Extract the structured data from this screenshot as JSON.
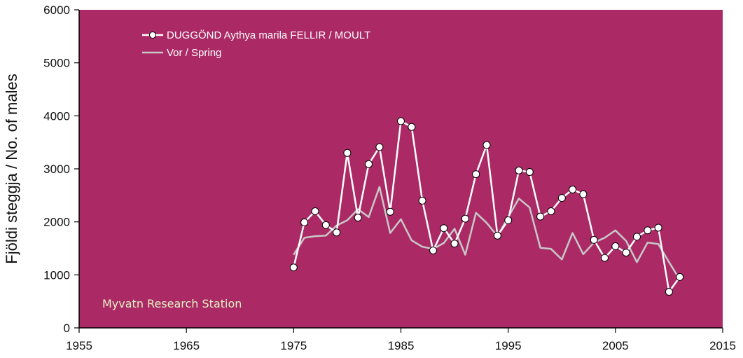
{
  "chart_data": {
    "type": "line",
    "title": "",
    "xlabel": "",
    "ylabel": "Fjöldi steggja / No. of males",
    "xlim": [
      1955,
      2015
    ],
    "ylim": [
      0,
      6000
    ],
    "xticks": [
      1955,
      1965,
      1975,
      1985,
      1995,
      2005,
      2015
    ],
    "yticks": [
      0,
      1000,
      2000,
      3000,
      4000,
      5000,
      6000
    ],
    "grid": false,
    "legend_position": "top-left",
    "annotation": "Myvatn Research Station",
    "colors": {
      "plot_background": "#ab2a66",
      "moult": "#ffffff",
      "spring": "#c8c8c8",
      "annotation": "#e4f3c4"
    },
    "series": [
      {
        "name": "DUGGÖND Aythya marila FELLIR / MOULT",
        "marker": "circle",
        "x": [
          1975,
          1976,
          1977,
          1978,
          1979,
          1980,
          1981,
          1982,
          1983,
          1984,
          1985,
          1986,
          1987,
          1988,
          1989,
          1990,
          1991,
          1992,
          1993,
          1994,
          1995,
          1996,
          1997,
          1998,
          1999,
          2000,
          2001,
          2002,
          2003,
          2004,
          2005,
          2006,
          2007,
          2008,
          2009,
          2010,
          2011
        ],
        "y": [
          1140,
          1990,
          2200,
          1940,
          1800,
          3300,
          2080,
          3090,
          3410,
          2190,
          3900,
          3790,
          2400,
          1460,
          1880,
          1590,
          2060,
          2900,
          3450,
          1740,
          2030,
          2970,
          2940,
          2100,
          2200,
          2450,
          2610,
          2520,
          1660,
          1320,
          1540,
          1420,
          1720,
          1840,
          1890,
          680,
          960
        ]
      },
      {
        "name": "Vor / Spring",
        "marker": "none",
        "x": [
          1975,
          1976,
          1977,
          1978,
          1979,
          1980,
          1981,
          1982,
          1983,
          1984,
          1985,
          1986,
          1987,
          1988,
          1989,
          1990,
          1991,
          1992,
          1993,
          1994,
          1995,
          1996,
          1997,
          1998,
          1999,
          2000,
          2001,
          2002,
          2003,
          2004,
          2005,
          2006,
          2007,
          2008,
          2009,
          2010,
          2011
        ],
        "y": [
          1380,
          1700,
          1730,
          1740,
          1930,
          2030,
          2240,
          2090,
          2660,
          1790,
          2050,
          1650,
          1530,
          1490,
          1600,
          1870,
          1380,
          2170,
          1980,
          1730,
          2090,
          2440,
          2270,
          1510,
          1490,
          1290,
          1790,
          1390,
          1610,
          1700,
          1840,
          1640,
          1240,
          1610,
          1580,
          1240,
          910
        ]
      }
    ]
  }
}
